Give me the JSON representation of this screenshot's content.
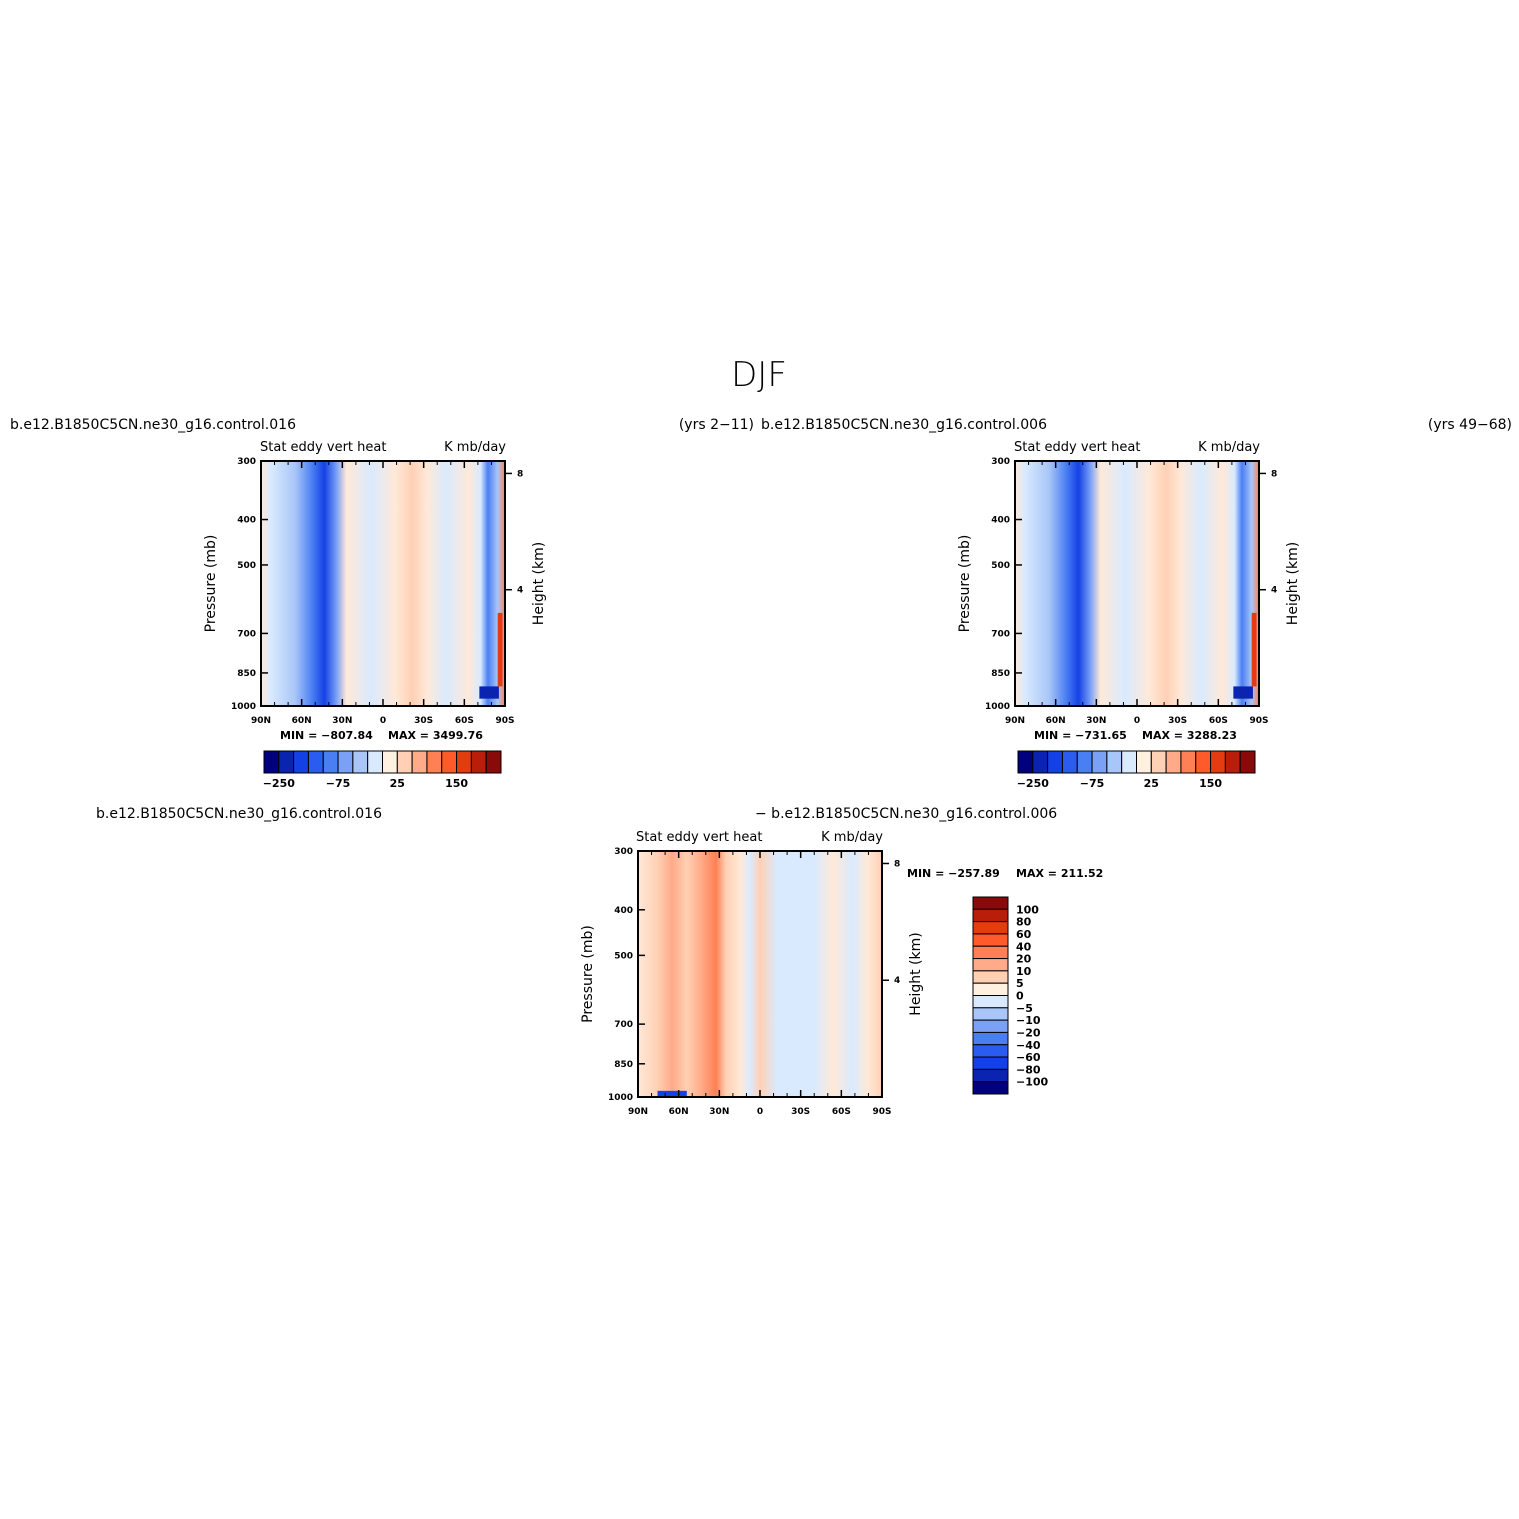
{
  "title": "DJF",
  "colors": {
    "hbar_palette": [
      "#00007f",
      "#0a23b0",
      "#1441e6",
      "#2a5cf0",
      "#4a7ef3",
      "#7aa1f6",
      "#a9c6f8",
      "#d9eaff",
      "#fff0e0",
      "#ffd0b4",
      "#ffaa88",
      "#ff8055",
      "#ff5a2a",
      "#e43c10",
      "#b81e0a",
      "#8a0a0a"
    ],
    "vbar_palette": [
      "#8a0a0a",
      "#b81e0a",
      "#e43c10",
      "#ff5a2a",
      "#ff8055",
      "#ffaa88",
      "#ffd0b4",
      "#fff0e0",
      "#d9eaff",
      "#a9c6f8",
      "#7aa1f6",
      "#4a7ef3",
      "#2a5cf0",
      "#1441e6",
      "#0a23b0",
      "#00007f"
    ]
  },
  "chart_data": [
    {
      "type": "heatmap",
      "name": "panel-control-016",
      "case_label": "b.e12.B1850C5CN.ne30_g16.control.016",
      "years_label": "(yrs 2−11)",
      "variable_label": "Stat  eddy  vert  heat",
      "units_label": "K  mb/day",
      "ylabel": "Pressure  (mb)",
      "y2label": "Height  (km)",
      "x_ticks": [
        "90N",
        "60N",
        "30N",
        "0",
        "30S",
        "60S",
        "90S"
      ],
      "y_ticks": [
        "300",
        "400",
        "500",
        "700",
        "850",
        "1000"
      ],
      "y2_ticks": [
        "8",
        "4"
      ],
      "min_label": "MIN  =  −807.84",
      "max_label": "MAX  =  3499.76",
      "colorbar_labels": [
        "−250",
        "−75",
        "25",
        "150"
      ]
    },
    {
      "type": "heatmap",
      "name": "panel-control-006",
      "case_label": "b.e12.B1850C5CN.ne30_g16.control.006",
      "years_label": "(yrs 49−68)",
      "variable_label": "Stat  eddy  vert  heat",
      "units_label": "K  mb/day",
      "ylabel": "Pressure  (mb)",
      "y2label": "Height  (km)",
      "x_ticks": [
        "90N",
        "60N",
        "30N",
        "0",
        "30S",
        "60S",
        "90S"
      ],
      "y_ticks": [
        "300",
        "400",
        "500",
        "700",
        "850",
        "1000"
      ],
      "y2_ticks": [
        "8",
        "4"
      ],
      "min_label": "MIN  =  −731.65",
      "max_label": "MAX  =  3288.23",
      "colorbar_labels": [
        "−250",
        "−75",
        "25",
        "150"
      ]
    },
    {
      "type": "heatmap",
      "name": "panel-difference",
      "case_label": "b.e12.B1850C5CN.ne30_g16.control.016",
      "case_label_2": "−  b.e12.B1850C5CN.ne30_g16.control.006",
      "variable_label": "Stat  eddy  vert  heat",
      "units_label": "K  mb/day",
      "ylabel": "Pressure  (mb)",
      "y2label": "Height  (km)",
      "x_ticks": [
        "90N",
        "60N",
        "30N",
        "0",
        "30S",
        "60S",
        "90S"
      ],
      "y_ticks": [
        "300",
        "400",
        "500",
        "700",
        "850",
        "1000"
      ],
      "y2_ticks": [
        "8",
        "4"
      ],
      "min_label": "MIN  =  −257.89",
      "max_label": "MAX  =  211.52",
      "colorbar_labels": [
        "100",
        "80",
        "60",
        "40",
        "20",
        "10",
        "5",
        "0",
        "−5",
        "−10",
        "−20",
        "−40",
        "−60",
        "−80",
        "−100"
      ]
    }
  ]
}
